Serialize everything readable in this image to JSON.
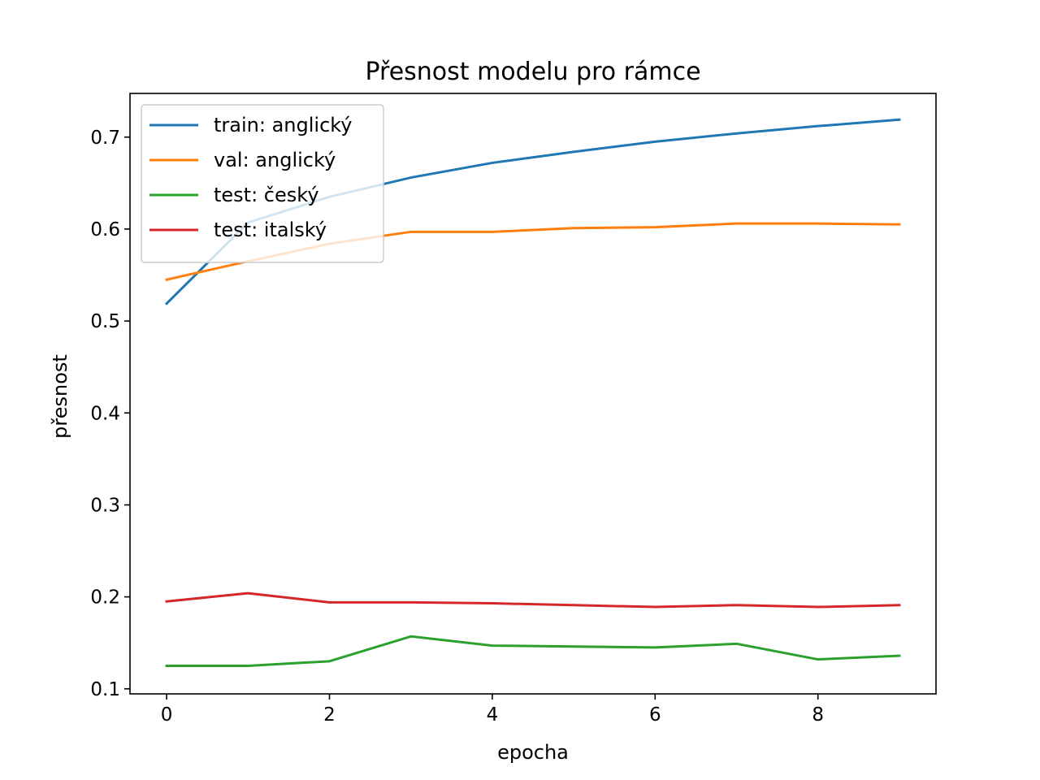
{
  "chart_data": {
    "type": "line",
    "title": "Přesnost modelu pro rámce",
    "xlabel": "epocha",
    "ylabel": "přesnost",
    "x": [
      0,
      1,
      2,
      3,
      4,
      5,
      6,
      7,
      8,
      9
    ],
    "xlim": [
      -0.45,
      9.45
    ],
    "ylim": [
      0.0945,
      0.7475
    ],
    "xticks": [
      0,
      2,
      4,
      6,
      8
    ],
    "xtick_labels": [
      "0",
      "2",
      "4",
      "6",
      "8"
    ],
    "yticks": [
      0.1,
      0.2,
      0.3,
      0.4,
      0.5,
      0.6,
      0.7
    ],
    "ytick_labels": [
      "0.1",
      "0.2",
      "0.3",
      "0.4",
      "0.5",
      "0.6",
      "0.7"
    ],
    "grid": false,
    "legend_position": "top-left",
    "series": [
      {
        "name": "train: anglický",
        "color": "#1f77b4",
        "values": [
          0.519,
          0.607,
          0.635,
          0.656,
          0.672,
          0.684,
          0.695,
          0.704,
          0.712,
          0.719
        ]
      },
      {
        "name": "val: anglický",
        "color": "#ff7f0e",
        "values": [
          0.545,
          0.565,
          0.584,
          0.597,
          0.597,
          0.601,
          0.602,
          0.606,
          0.606,
          0.605
        ]
      },
      {
        "name": "test: český",
        "color": "#2ca02c",
        "values": [
          0.125,
          0.125,
          0.13,
          0.157,
          0.147,
          0.146,
          0.145,
          0.149,
          0.132,
          0.136
        ]
      },
      {
        "name": "test: italský",
        "color": "#d62728",
        "values": [
          0.195,
          0.204,
          0.194,
          0.194,
          0.193,
          0.191,
          0.189,
          0.191,
          0.189,
          0.191
        ]
      }
    ]
  }
}
